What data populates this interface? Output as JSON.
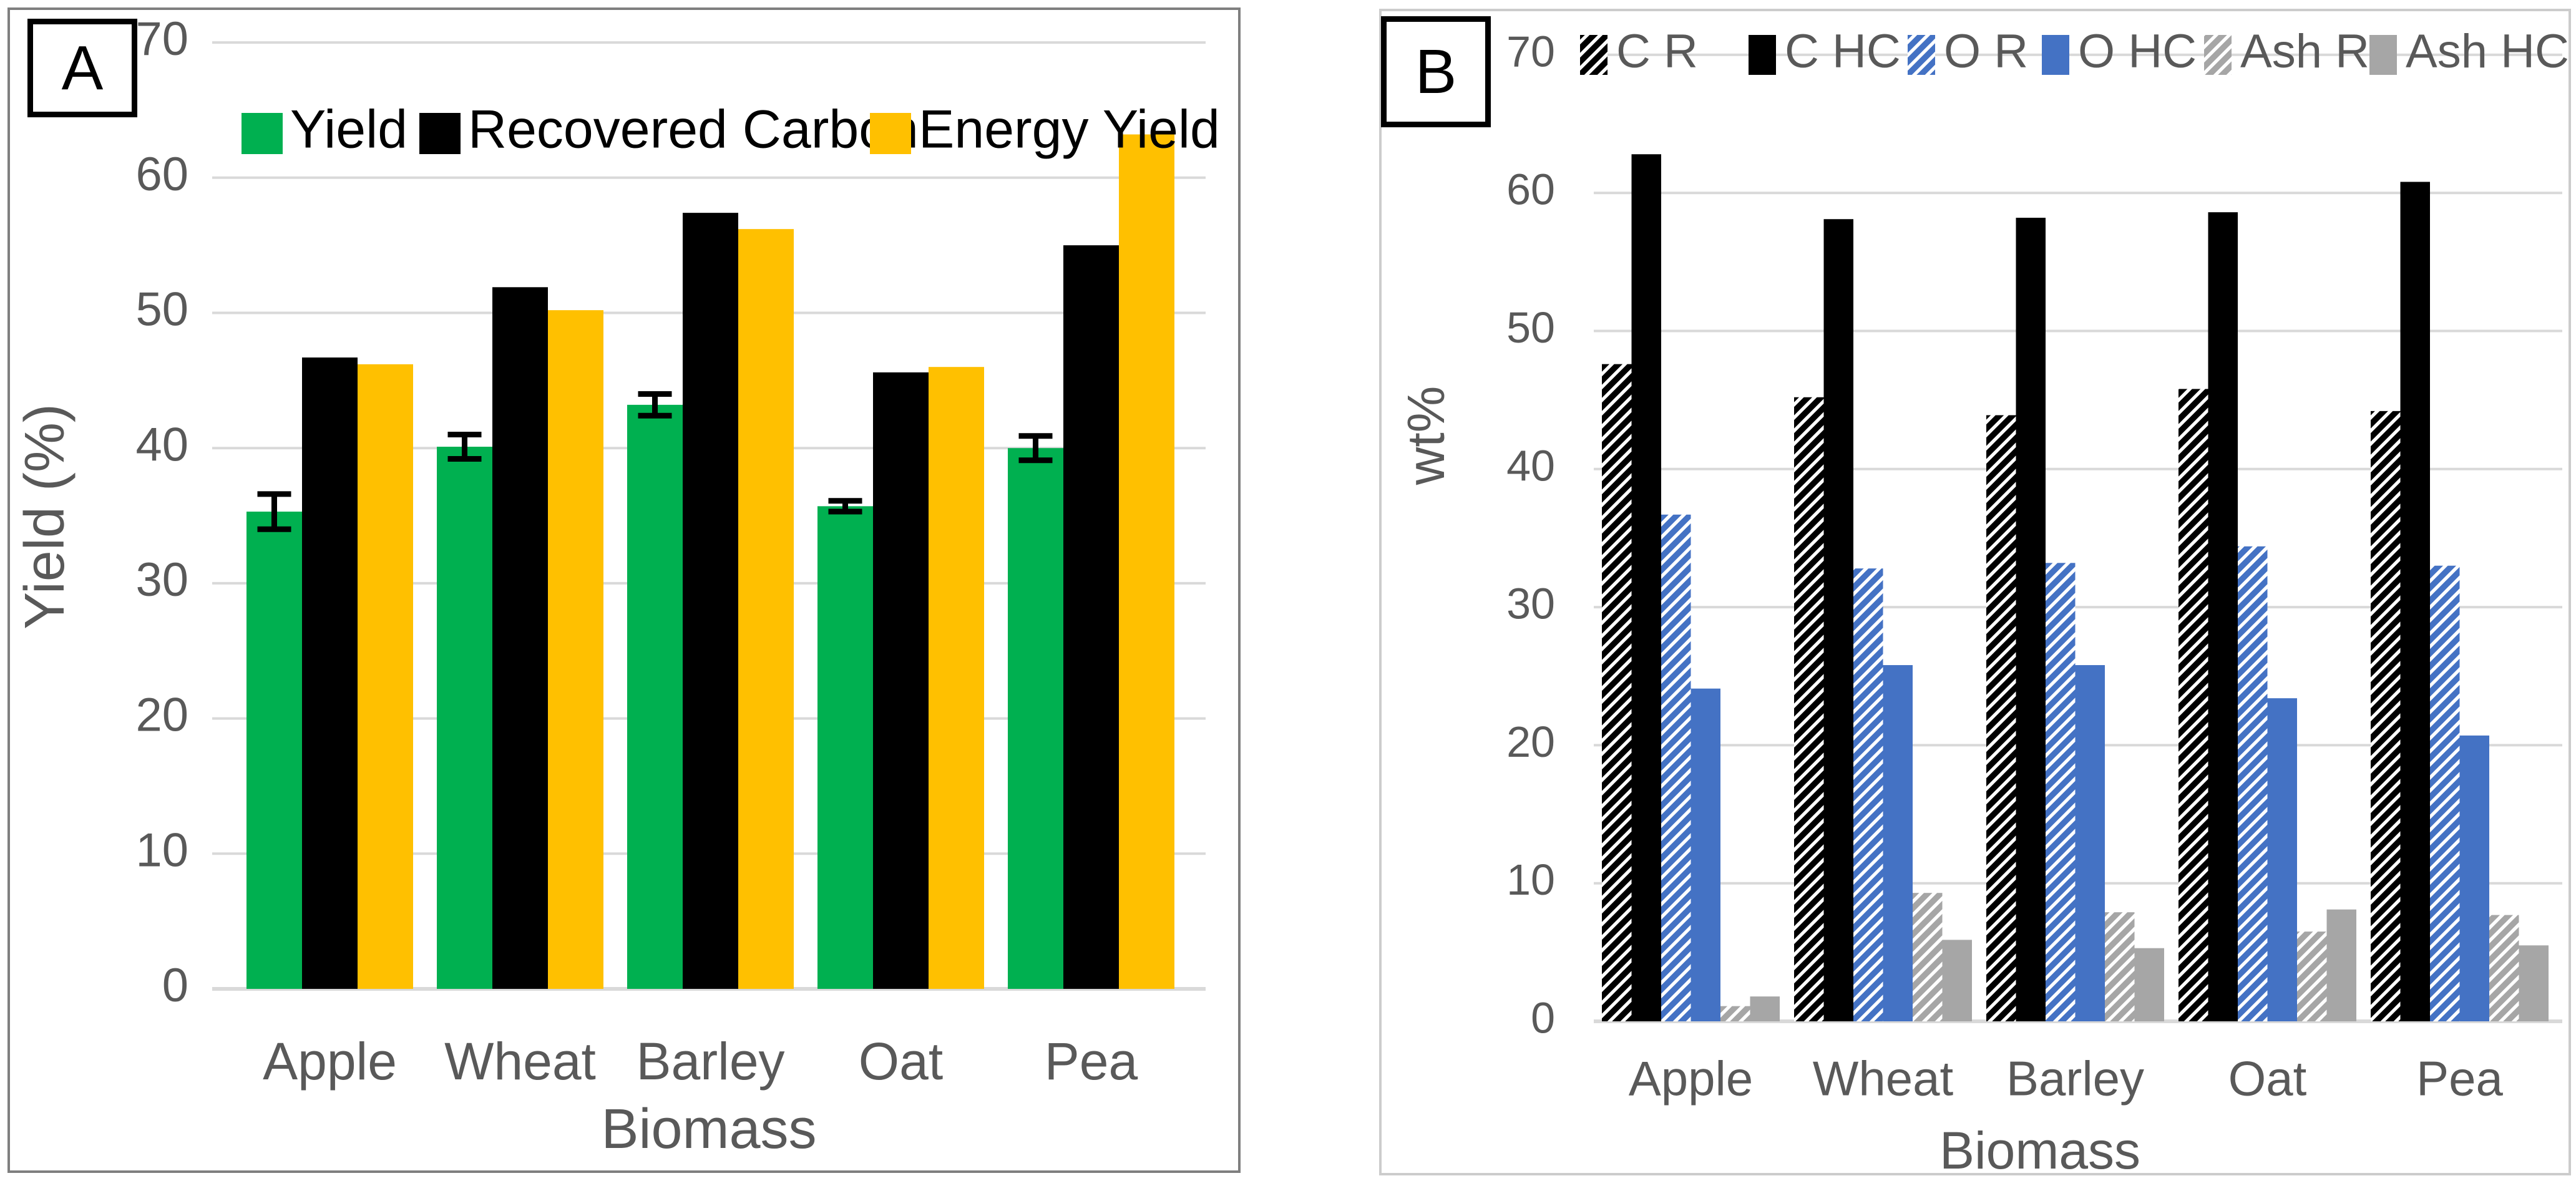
{
  "panels": [
    {
      "label": "A"
    },
    {
      "label": "B"
    }
  ],
  "colors": {
    "green": "#00B050",
    "black": "#000000",
    "gold": "#FFC000",
    "blue": "#4472C4",
    "gray": "#A6A6A6",
    "gridline": "#D9D9D9",
    "axis_text": "#595959",
    "legend_text_b": "#595959",
    "legend_text_a": "#000000",
    "panel_a_border": "#7f7f7f",
    "panel_b_border": "#cccccc"
  },
  "chart_data": [
    {
      "type": "bar",
      "panel": "A",
      "xlabel": "Biomass",
      "ylabel": "Yield (%)",
      "ylim": [
        0,
        70
      ],
      "ytick_step": 10,
      "grid": true,
      "legend_position": "top-inside",
      "categories": [
        "Apple",
        "Wheat",
        "Barley",
        "Oat",
        "Pea"
      ],
      "series": [
        {
          "name": "Yield",
          "color": "#00B050",
          "style": "solid",
          "values": [
            35.3,
            40.1,
            43.2,
            35.7,
            40.0
          ],
          "errors": [
            1.3,
            0.9,
            0.8,
            0.4,
            0.9
          ]
        },
        {
          "name": "Recovered Carbon",
          "color": "#000000",
          "style": "solid",
          "values": [
            46.7,
            51.9,
            57.4,
            45.6,
            55.0
          ]
        },
        {
          "name": "Energy Yield",
          "color": "#FFC000",
          "style": "solid",
          "values": [
            46.2,
            50.2,
            56.2,
            46.0,
            63.2
          ]
        }
      ]
    },
    {
      "type": "bar",
      "panel": "B",
      "xlabel": "Biomass",
      "ylabel": "wt%",
      "ylim": [
        0,
        70
      ],
      "ytick_step": 10,
      "grid": true,
      "legend_position": "top-inside",
      "categories": [
        "Apple",
        "Wheat",
        "Barley",
        "Oat",
        "Pea"
      ],
      "series": [
        {
          "name": "C R",
          "color": "#000000",
          "style": "hatch",
          "values": [
            47.6,
            45.2,
            43.9,
            45.8,
            44.2
          ]
        },
        {
          "name": "C HC",
          "color": "#000000",
          "style": "solid",
          "values": [
            62.8,
            58.1,
            58.2,
            58.6,
            60.8
          ]
        },
        {
          "name": "O R",
          "color": "#4472C4",
          "style": "hatch",
          "values": [
            36.7,
            32.8,
            33.2,
            34.4,
            33.0
          ]
        },
        {
          "name": "O HC",
          "color": "#4472C4",
          "style": "solid",
          "values": [
            24.1,
            25.8,
            25.8,
            23.4,
            20.7
          ]
        },
        {
          "name": "Ash R",
          "color": "#A6A6A6",
          "style": "hatch",
          "values": [
            1.1,
            9.3,
            7.9,
            6.5,
            7.7
          ]
        },
        {
          "name": "Ash HC",
          "color": "#A6A6A6",
          "style": "solid",
          "values": [
            1.8,
            5.9,
            5.3,
            8.1,
            5.5
          ]
        }
      ]
    }
  ]
}
